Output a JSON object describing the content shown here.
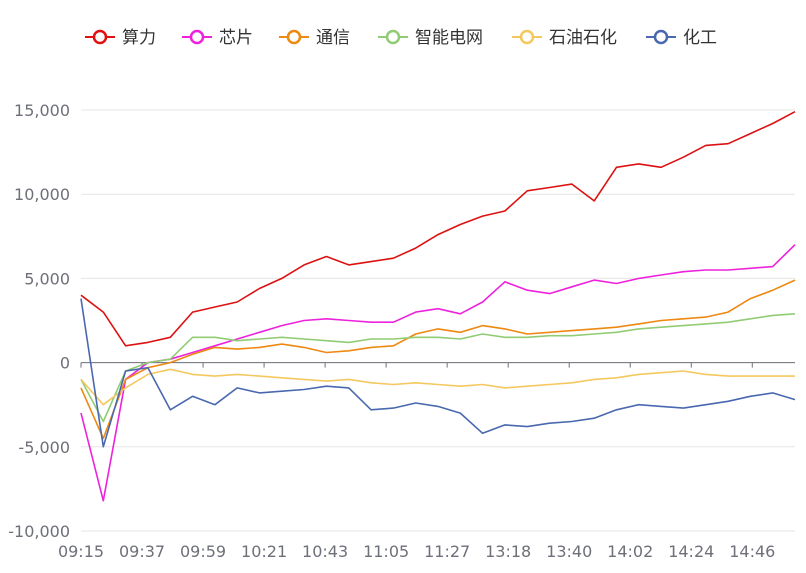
{
  "chart_data": {
    "type": "line",
    "title": "",
    "xlabel": "",
    "ylabel": "",
    "ylim": [
      -10000,
      15000
    ],
    "yticks": [
      -10000,
      -5000,
      0,
      5000,
      10000,
      15000
    ],
    "ytick_labels": [
      "-10,000",
      "-5,000",
      "0",
      "5,000",
      "10,000",
      "15,000"
    ],
    "xtick_labels": [
      "09:15",
      "09:37",
      "09:59",
      "10:21",
      "10:43",
      "11:05",
      "11:27",
      "13:18",
      "13:40",
      "14:02",
      "14:24",
      "14:46"
    ],
    "grid": true,
    "legend_position": "top",
    "series": [
      {
        "name": "算力",
        "color": "#dd1111",
        "values": [
          4000,
          3000,
          1000,
          1200,
          1500,
          3000,
          3300,
          3600,
          4400,
          5000,
          5800,
          6300,
          5800,
          6000,
          6200,
          6800,
          7600,
          8200,
          8700,
          9000,
          10200,
          10400,
          10600,
          9600,
          11600,
          11800,
          11600,
          12200,
          12900,
          13000,
          13600,
          14200,
          14900
        ]
      },
      {
        "name": "芯片",
        "color": "#ee22dd",
        "values": [
          -3000,
          -8200,
          -1000,
          0,
          200,
          600,
          1000,
          1400,
          1800,
          2200,
          2500,
          2600,
          2500,
          2400,
          2400,
          3000,
          3200,
          2900,
          3600,
          4800,
          4300,
          4100,
          4500,
          4900,
          4700,
          5000,
          5200,
          5400,
          5500,
          5500,
          5600,
          5700,
          7000
        ]
      },
      {
        "name": "通信",
        "color": "#ee8811",
        "values": [
          -1500,
          -4500,
          -1000,
          -300,
          0,
          500,
          900,
          800,
          900,
          1100,
          900,
          600,
          700,
          900,
          1000,
          1700,
          2000,
          1800,
          2200,
          2000,
          1700,
          1800,
          1900,
          2000,
          2100,
          2300,
          2500,
          2600,
          2700,
          3000,
          3800,
          4300,
          4900
        ]
      },
      {
        "name": "智能电网",
        "color": "#91cc75",
        "values": [
          -1000,
          -3500,
          -500,
          0,
          200,
          1500,
          1500,
          1300,
          1400,
          1500,
          1400,
          1300,
          1200,
          1400,
          1400,
          1500,
          1500,
          1400,
          1700,
          1500,
          1500,
          1600,
          1600,
          1700,
          1800,
          2000,
          2100,
          2200,
          2300,
          2400,
          2600,
          2800,
          2900
        ]
      },
      {
        "name": "石油石化",
        "color": "#f4c85e",
        "values": [
          -1000,
          -2500,
          -1500,
          -700,
          -400,
          -700,
          -800,
          -700,
          -800,
          -900,
          -1000,
          -1100,
          -1000,
          -1200,
          -1300,
          -1200,
          -1300,
          -1400,
          -1300,
          -1500,
          -1400,
          -1300,
          -1200,
          -1000,
          -900,
          -700,
          -600,
          -500,
          -700,
          -800,
          -800,
          -800,
          -800
        ]
      },
      {
        "name": "化工",
        "color": "#4a68b0",
        "values": [
          3800,
          -5000,
          -500,
          -300,
          -2800,
          -2000,
          -2500,
          -1500,
          -1800,
          -1700,
          -1600,
          -1400,
          -1500,
          -2800,
          -2700,
          -2400,
          -2600,
          -3000,
          -4200,
          -3700,
          -3800,
          -3600,
          -3500,
          -3300,
          -2800,
          -2500,
          -2600,
          -2700,
          -2500,
          -2300,
          -2000,
          -1800,
          -2200
        ]
      }
    ]
  }
}
